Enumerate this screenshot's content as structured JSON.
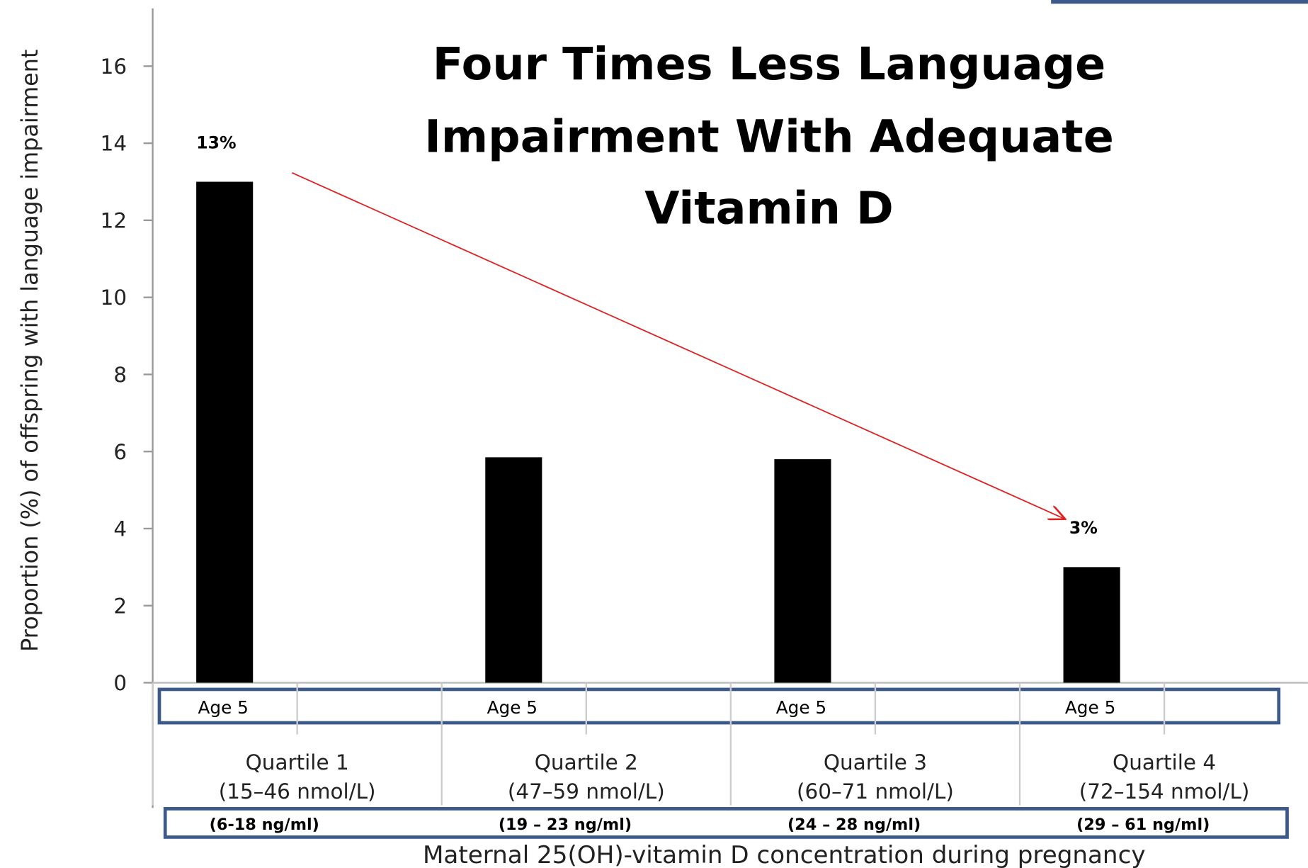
{
  "chart_data": {
    "type": "bar",
    "title": [
      "Four Times Less Language",
      "Impairment With Adequate",
      "Vitamin D"
    ],
    "y_label": "Proportion (%) of offspring with language impairment",
    "x_label": "Maternal 25(OH)-vitamin D concentration during pregnancy",
    "categories": [
      "Quartile 1",
      "Quartile 2",
      "Quartile 3",
      "Quartile 4"
    ],
    "nmol_ranges": [
      "(15–46 nmol/L)",
      "(47–59 nmol/L)",
      "(60–71 nmol/L)",
      "(72–154 nmol/L)"
    ],
    "ngml_ranges": [
      "(6-18 ng/ml)",
      "(19 – 23 ng/ml)",
      "(24 – 28 ng/ml)",
      "(29 – 61 ng/ml)"
    ],
    "group_labels": [
      "Age 5",
      "Age 5",
      "Age 5",
      "Age 5"
    ],
    "values": [
      13,
      5.85,
      5.8,
      3
    ],
    "value_labels": [
      "13%",
      null,
      null,
      "3%"
    ],
    "color": "#000000",
    "ylim": [
      0,
      17.5
    ],
    "yticks": [
      0,
      2,
      4,
      6,
      8,
      10,
      12,
      14,
      16
    ]
  }
}
